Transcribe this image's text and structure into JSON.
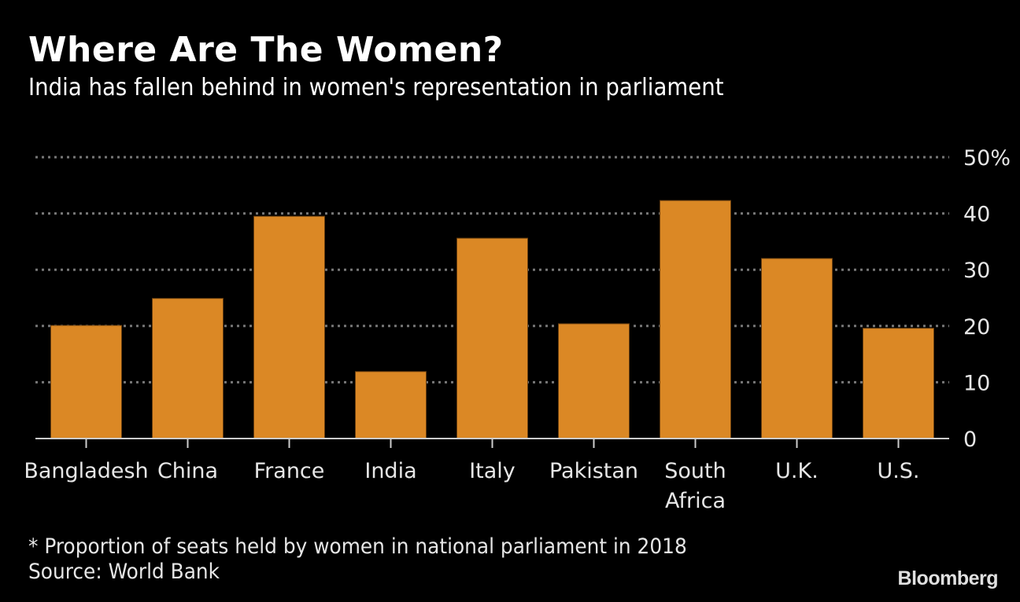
{
  "header": {
    "title": "Where Are The Women?",
    "subtitle": "India has fallen behind in women's representation in parliament"
  },
  "footer": {
    "note": "* Proportion of seats held by women in national parliament in 2018",
    "source": "Source: World Bank",
    "brand": "Bloomberg"
  },
  "colors": {
    "bar": "#db8825",
    "background": "#000000",
    "grid": "#777777",
    "axis": "#cccccc"
  },
  "chart_data": {
    "type": "bar",
    "title": "Where Are The Women?",
    "subtitle": "India has fallen behind in women's representation in parliament",
    "xlabel": "",
    "ylabel": "",
    "categories": [
      "Bangladesh",
      "China",
      "France",
      "India",
      "Italy",
      "Pakistan",
      "South Africa",
      "U.K.",
      "U.S."
    ],
    "category_lines": [
      [
        "Bangladesh"
      ],
      [
        "China"
      ],
      [
        "France"
      ],
      [
        "India"
      ],
      [
        "Italy"
      ],
      [
        "Pakistan"
      ],
      [
        "South",
        "Africa"
      ],
      [
        "U.K."
      ],
      [
        "U.S."
      ]
    ],
    "values": [
      20.1,
      24.9,
      39.5,
      11.9,
      35.6,
      20.4,
      42.3,
      32.0,
      19.6
    ],
    "ylim": [
      0,
      50
    ],
    "yticks": [
      0,
      10,
      20,
      30,
      40,
      50
    ],
    "ytick_labels": [
      "0",
      "10",
      "20",
      "30",
      "40",
      "50%"
    ],
    "y_axis_side": "right",
    "grid": true,
    "grid_style": "dotted",
    "legend": "none"
  }
}
